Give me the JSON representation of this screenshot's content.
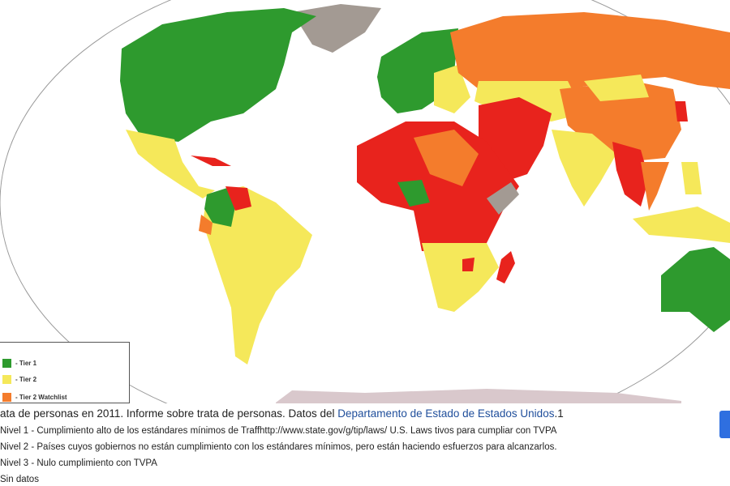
{
  "legend": {
    "items": [
      "- Tier 1",
      "- Tier 2",
      "- Tier 2 Watchlist"
    ]
  },
  "caption": {
    "text": "ata de personas en 2011. Informe sobre trata de personas. Datos del",
    "link": "Departamento de Estado de Estados Unidos",
    "suffix": ".1"
  },
  "list": [
    "Nivel 1 - Cumplimiento alto de los estándares mínimos de Traffhttp://www.state.gov/g/tip/laws/ U.S. Laws tivos para cumpliar con TVPA",
    "Nivel 2 - Países cuyos gobiernos no están cumplimiento con los estándares mínimos, pero están haciendo esfuerzos para alcanzarlos.",
    "Nivel 3 - Nulo cumplimiento con TVPA",
    "Sin datos"
  ]
}
